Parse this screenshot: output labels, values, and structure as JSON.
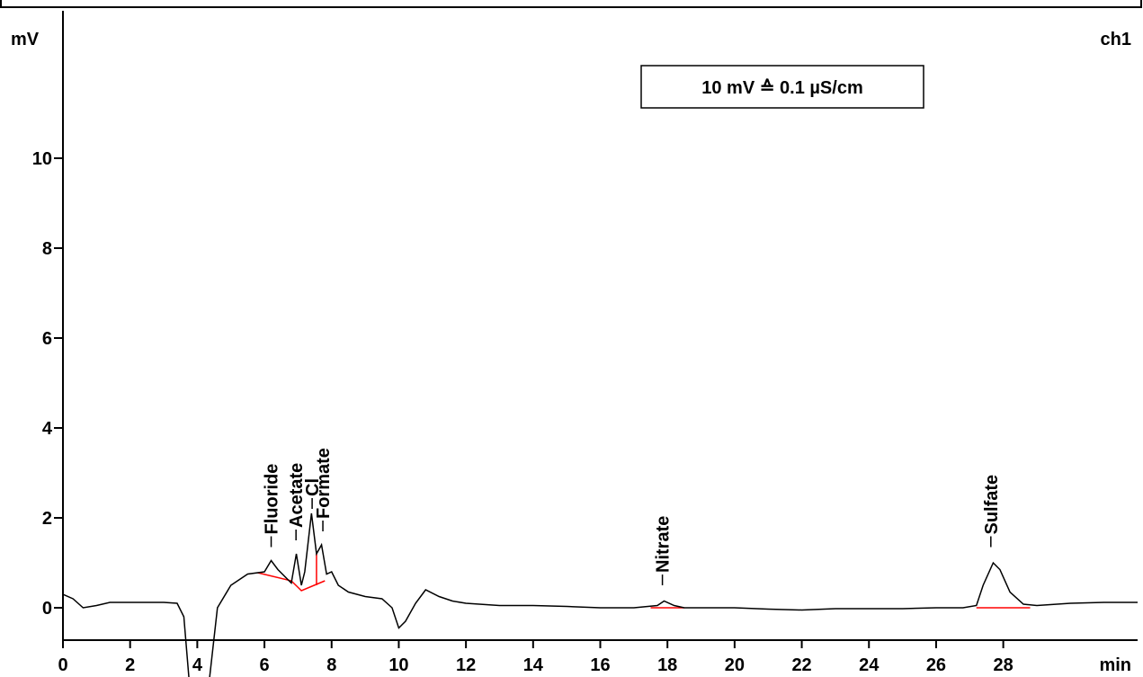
{
  "chart_data": {
    "type": "line",
    "y_label": "mV",
    "x_label": "min",
    "channel": "ch1",
    "annotation": "10 mV ≙ 0.1 µS/cm",
    "xlim": [
      0,
      32
    ],
    "ylim": [
      -0.72,
      13.28
    ],
    "xticks": [
      0,
      2,
      4,
      6,
      8,
      10,
      12,
      14,
      16,
      18,
      20,
      22,
      24,
      26,
      28
    ],
    "yticks": [
      0,
      2,
      4,
      6,
      8,
      10
    ],
    "color": "#000000",
    "x": [
      0,
      0.3,
      0.6,
      1.0,
      1.4,
      2,
      3,
      3.4,
      3.6,
      3.8,
      4.3,
      4.6,
      5.0,
      5.5,
      6.0,
      6.2,
      6.4,
      6.8,
      6.95,
      7.1,
      7.2,
      7.4,
      7.55,
      7.7,
      7.85,
      8.0,
      8.2,
      8.5,
      9.0,
      9.5,
      9.8,
      10.0,
      10.2,
      10.5,
      10.8,
      11.2,
      11.6,
      12,
      13,
      14,
      15,
      16,
      17,
      17.7,
      17.9,
      18.2,
      18.5,
      20,
      21,
      22,
      23,
      24,
      25,
      26,
      26.8,
      27.2,
      27.4,
      27.7,
      27.9,
      28.2,
      28.6,
      29,
      30,
      31,
      32
    ],
    "values": [
      0.3,
      0.2,
      0.0,
      0.05,
      0.12,
      0.12,
      0.12,
      0.1,
      -0.2,
      -2,
      -2,
      0.0,
      0.5,
      0.75,
      0.8,
      1.05,
      0.85,
      0.55,
      1.2,
      0.5,
      0.8,
      2.1,
      1.2,
      1.4,
      0.75,
      0.8,
      0.5,
      0.35,
      0.25,
      0.2,
      0.0,
      -0.45,
      -0.3,
      0.1,
      0.4,
      0.25,
      0.15,
      0.1,
      0.05,
      0.05,
      0.03,
      0.0,
      0.0,
      0.05,
      0.15,
      0.05,
      0.0,
      0.0,
      -0.03,
      -0.05,
      -0.02,
      -0.02,
      -0.02,
      0.0,
      0.0,
      0.05,
      0.5,
      1.0,
      0.85,
      0.35,
      0.08,
      0.05,
      0.1,
      0.12,
      0.12
    ],
    "baseline_color": "#ff0000",
    "baselines": [
      {
        "x": [
          5.8,
          6.8,
          7.1,
          7.8
        ],
        "y": [
          0.78,
          0.6,
          0.38,
          0.6
        ]
      },
      {
        "x": [
          7.55,
          7.55
        ],
        "y": [
          0.5,
          1.2
        ]
      },
      {
        "x": [
          17.5,
          18.5
        ],
        "y": [
          0,
          0
        ]
      },
      {
        "x": [
          27.2,
          28.8
        ],
        "y": [
          0,
          0
        ]
      }
    ],
    "peaks": [
      {
        "label": "Fluoride",
        "x": 6.2,
        "y": 1.35
      },
      {
        "label": "Acetate",
        "x": 6.94,
        "y": 1.5
      },
      {
        "label": "Cl",
        "x": 7.42,
        "y": 2.2
      },
      {
        "label": "Formate",
        "x": 7.74,
        "y": 1.7
      },
      {
        "label": "Nitrate",
        "x": 17.85,
        "y": 0.5
      },
      {
        "label": "Sulfate",
        "x": 27.63,
        "y": 1.35
      }
    ]
  }
}
